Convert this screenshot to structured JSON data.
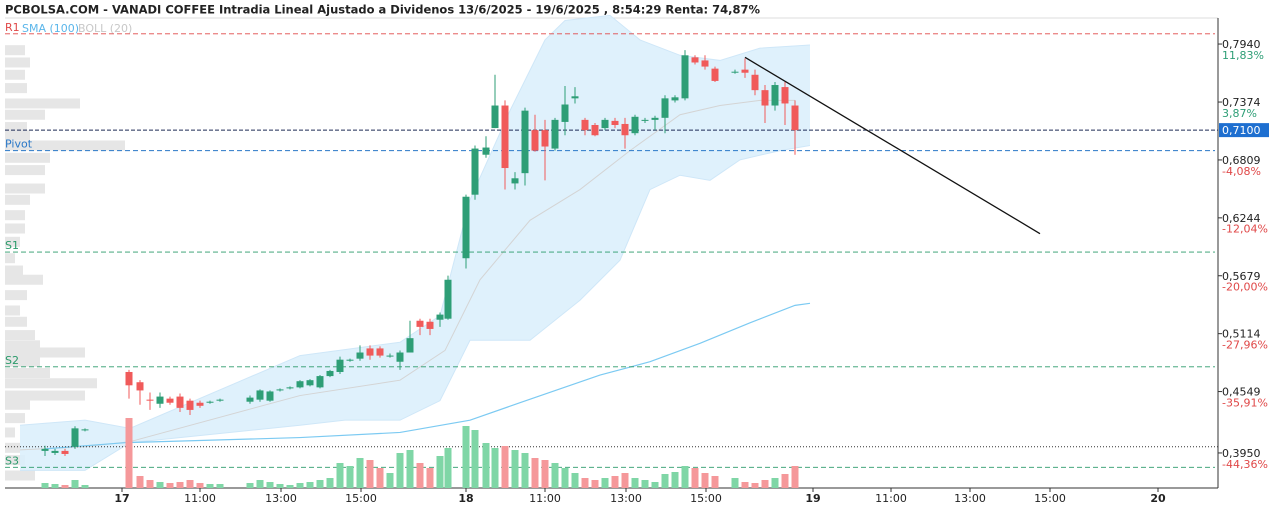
{
  "chart_data": {
    "type": "candlestick",
    "title": "PCBOLSA.COM - VANADI COFFEE Intradia Lineal Ajustado a Dividenos 13/6/2025 - 19/6/2025 , 8:54:29 Renta: 74,87%",
    "up_color": "#2e9e76",
    "down_color": "#f05a5a",
    "volume_up_color": "#7fd6a6",
    "volume_down_color": "#f5989a",
    "xlim": [
      0,
      121
    ],
    "xticks": [
      {
        "value": 11.7,
        "label": "17"
      },
      {
        "value": 19.5,
        "label": "11:00"
      },
      {
        "value": 27.6,
        "label": "13:00"
      },
      {
        "value": 35.6,
        "label": "15:00"
      },
      {
        "value": 46.1,
        "label": "18"
      },
      {
        "value": 54,
        "label": "11:00"
      },
      {
        "value": 62.1,
        "label": "13:00"
      },
      {
        "value": 70.1,
        "label": "15:00"
      },
      {
        "value": 80.8,
        "label": "19"
      },
      {
        "value": 88.6,
        "label": "11:00"
      },
      {
        "value": 96.5,
        "label": "13:00"
      },
      {
        "value": 104.5,
        "label": "15:00"
      },
      {
        "value": 115.3,
        "label": "20"
      }
    ],
    "ylim": [
      0.3608,
      0.8194
    ],
    "yticks": [
      {
        "value": 0.794,
        "label": "0,7940"
      },
      {
        "value": 0.7374,
        "label": "0,7374"
      },
      {
        "value": 0.6809,
        "label": "0,6809"
      },
      {
        "value": 0.6244,
        "label": "0,6244"
      },
      {
        "value": 0.5679,
        "label": "0,5679"
      },
      {
        "value": 0.5114,
        "label": "0,5114"
      },
      {
        "value": 0.4549,
        "label": "0,4549"
      },
      {
        "value": 0.395,
        "label": "0,3950"
      }
    ],
    "y2lim": [
      -49.18,
      15.41
    ],
    "y2ticks": [
      {
        "value": 11.83,
        "label": "11,83%"
      },
      {
        "value": 3.87,
        "label": "3,87%"
      },
      {
        "value": -4.08,
        "label": "-4,08%"
      },
      {
        "value": -12.04,
        "label": "-12,04%"
      },
      {
        "value": -20.0,
        "label": "-20,00%"
      },
      {
        "value": -27.96,
        "label": "-27,96%"
      },
      {
        "value": -35.91,
        "label": "-35,91%"
      },
      {
        "value": -44.36,
        "label": "-44,36%"
      }
    ],
    "current_price": {
      "value": 0.71,
      "label": "0,7100",
      "color": "#1e6fd0"
    },
    "reference_line": 0.401,
    "pivots": [
      {
        "name": "R1",
        "value": 0.804,
        "color": "#e04848"
      },
      {
        "name": "Pivot",
        "value": 0.69,
        "color": "#2a78c8"
      },
      {
        "name": "S1",
        "value": 0.591,
        "color": "#2a9a6a"
      },
      {
        "name": "S2",
        "value": 0.479,
        "color": "#2a9a6a"
      },
      {
        "name": "S3",
        "value": 0.381,
        "color": "#2a9a6a"
      }
    ],
    "sma": {
      "name": "SMA (100)",
      "color": "#7ccaf2",
      "x": [
        4,
        12,
        29.5,
        39.5,
        46.5,
        51.5,
        59.5,
        64.5,
        69.5,
        74.5,
        79,
        80.5
      ],
      "values": [
        0.399,
        0.405,
        0.41,
        0.415,
        0.427,
        0.444,
        0.471,
        0.484,
        0.502,
        0.522,
        0.539,
        0.541
      ]
    },
    "bollinger": {
      "name": "BOLL (20)",
      "color": "#d4d4d4",
      "fill": "#d9eefb",
      "upper": {
        "x": [
          1.5,
          8,
          12.5,
          29.5,
          39.5,
          43.5,
          46.5,
          50.5,
          54,
          56,
          60.5,
          63.5,
          67.5,
          71.5,
          75.5,
          80.5
        ],
        "values": [
          0.422,
          0.427,
          0.419,
          0.49,
          0.503,
          0.529,
          0.642,
          0.729,
          0.798,
          0.817,
          0.822,
          0.798,
          0.783,
          0.778,
          0.79,
          0.793
        ]
      },
      "middle": {
        "x": [
          1.5,
          8,
          12.5,
          29.5,
          39.5,
          44,
          47.5,
          52.5,
          57.5,
          62.5,
          67.5,
          71.5,
          75.5,
          79
        ],
        "values": [
          0.398,
          0.401,
          0.406,
          0.451,
          0.466,
          0.495,
          0.564,
          0.622,
          0.652,
          0.69,
          0.725,
          0.734,
          0.739,
          0.739
        ]
      },
      "lower": {
        "x": [
          1.5,
          8,
          12.5,
          29.5,
          34,
          39.5,
          43.5,
          46.5,
          52.5,
          57.5,
          61.5,
          64.5,
          67.5,
          70.5,
          73.5,
          77.5,
          80.5
        ],
        "values": [
          0.378,
          0.378,
          0.405,
          0.422,
          0.427,
          0.427,
          0.446,
          0.505,
          0.505,
          0.544,
          0.583,
          0.652,
          0.666,
          0.661,
          0.681,
          0.69,
          0.695
        ]
      }
    },
    "trendline": {
      "x": [
        74,
        103.5
      ],
      "values": [
        0.781,
        0.609
      ]
    },
    "volume_profile": {
      "color": "#e6e6e6",
      "levels": [
        0.788,
        0.776,
        0.764,
        0.751,
        0.736,
        0.725,
        0.713,
        0.705,
        0.695,
        0.683,
        0.671,
        0.653,
        0.642,
        0.627,
        0.614,
        0.601,
        0.585,
        0.573,
        0.564,
        0.549,
        0.534,
        0.523,
        0.51,
        0.5,
        0.493,
        0.484,
        0.473,
        0.463,
        0.451,
        0.442,
        0.429,
        0.415,
        0.4,
        0.388,
        0.373
      ],
      "values": [
        20,
        25,
        20,
        22,
        75,
        40,
        22,
        25,
        120,
        45,
        40,
        40,
        25,
        20,
        20,
        15,
        10,
        18,
        38,
        22,
        15,
        22,
        30,
        35,
        80,
        35,
        45,
        92,
        80,
        25,
        20,
        10,
        15,
        20,
        30
      ]
    },
    "candles": {
      "x": [
        4,
        5,
        6,
        7,
        8,
        12.4,
        13.5,
        14.5,
        15.5,
        16.5,
        17.5,
        18.5,
        19.5,
        20.5,
        21.5,
        24.5,
        25.5,
        26.5,
        27.5,
        28.5,
        29.5,
        30.5,
        31.5,
        32.5,
        33.5,
        34.5,
        35.5,
        36.5,
        37.5,
        38.5,
        39.5,
        40.5,
        41.5,
        42.5,
        43.5,
        44.3,
        46.1,
        47,
        48.1,
        49,
        50,
        51,
        52,
        53,
        54,
        55,
        56,
        57,
        58,
        59,
        60,
        61,
        62,
        63,
        64,
        65,
        66,
        67,
        68,
        69,
        70,
        71,
        73,
        74,
        75,
        76,
        77,
        78,
        79
      ],
      "open": [
        0.397,
        0.395,
        0.397,
        0.401,
        0.417,
        0.474,
        0.464,
        0.447,
        0.443,
        0.448,
        0.45,
        0.446,
        0.444,
        0.444,
        0.446,
        0.445,
        0.447,
        0.446,
        0.456,
        0.458,
        0.459,
        0.461,
        0.459,
        0.47,
        0.474,
        0.485,
        0.487,
        0.497,
        0.497,
        0.49,
        0.484,
        0.493,
        0.524,
        0.523,
        0.525,
        0.526,
        0.585,
        0.647,
        0.686,
        0.712,
        0.734,
        0.658,
        0.668,
        0.71,
        0.71,
        0.692,
        0.718,
        0.741,
        0.72,
        0.715,
        0.712,
        0.719,
        0.716,
        0.707,
        0.719,
        0.72,
        0.722,
        0.739,
        0.741,
        0.781,
        0.778,
        0.77,
        0.767,
        0.769,
        0.764,
        0.749,
        0.734,
        0.752,
        0.734
      ],
      "high": [
        0.402,
        0.399,
        0.399,
        0.421,
        0.419,
        0.476,
        0.466,
        0.454,
        0.454,
        0.45,
        0.453,
        0.448,
        0.446,
        0.446,
        0.448,
        0.451,
        0.457,
        0.456,
        0.458,
        0.46,
        0.466,
        0.467,
        0.471,
        0.476,
        0.489,
        0.487,
        0.5,
        0.5,
        0.499,
        0.492,
        0.495,
        0.524,
        0.526,
        0.526,
        0.532,
        0.568,
        0.647,
        0.695,
        0.704,
        0.764,
        0.739,
        0.669,
        0.732,
        0.725,
        0.72,
        0.722,
        0.753,
        0.752,
        0.722,
        0.717,
        0.722,
        0.722,
        0.722,
        0.725,
        0.722,
        0.724,
        0.744,
        0.744,
        0.788,
        0.783,
        0.783,
        0.772,
        0.769,
        0.78,
        0.769,
        0.754,
        0.757,
        0.757,
        0.739
      ],
      "low": [
        0.392,
        0.393,
        0.392,
        0.399,
        0.416,
        0.448,
        0.442,
        0.437,
        0.439,
        0.442,
        0.435,
        0.432,
        0.439,
        0.443,
        0.445,
        0.443,
        0.445,
        0.445,
        0.455,
        0.457,
        0.458,
        0.46,
        0.458,
        0.469,
        0.472,
        0.484,
        0.485,
        0.486,
        0.488,
        0.488,
        0.476,
        0.493,
        0.51,
        0.51,
        0.518,
        0.525,
        0.575,
        0.642,
        0.683,
        0.712,
        0.652,
        0.652,
        0.656,
        0.689,
        0.661,
        0.69,
        0.705,
        0.736,
        0.705,
        0.704,
        0.71,
        0.712,
        0.692,
        0.705,
        0.717,
        0.71,
        0.707,
        0.737,
        0.739,
        0.774,
        0.769,
        0.757,
        0.765,
        0.761,
        0.744,
        0.717,
        0.729,
        0.715,
        0.686
      ],
      "close": [
        0.399,
        0.397,
        0.394,
        0.419,
        0.418,
        0.461,
        0.456,
        0.446,
        0.45,
        0.444,
        0.439,
        0.437,
        0.441,
        0.445,
        0.447,
        0.449,
        0.456,
        0.455,
        0.457,
        0.459,
        0.465,
        0.466,
        0.47,
        0.475,
        0.486,
        0.486,
        0.493,
        0.49,
        0.49,
        0.49,
        0.493,
        0.507,
        0.518,
        0.516,
        0.53,
        0.564,
        0.645,
        0.692,
        0.693,
        0.734,
        0.673,
        0.663,
        0.729,
        0.69,
        0.694,
        0.72,
        0.735,
        0.743,
        0.71,
        0.705,
        0.72,
        0.715,
        0.705,
        0.723,
        0.72,
        0.722,
        0.741,
        0.742,
        0.783,
        0.776,
        0.772,
        0.758,
        0.767,
        0.766,
        0.749,
        0.734,
        0.754,
        0.736,
        0.71
      ],
      "volume": [
        5,
        4,
        3,
        8,
        3,
        70,
        12,
        8,
        6,
        5,
        6,
        8,
        5,
        4,
        4,
        5,
        8,
        6,
        4,
        3,
        5,
        6,
        8,
        10,
        25,
        22,
        30,
        28,
        20,
        15,
        35,
        38,
        25,
        20,
        32,
        40,
        62,
        58,
        45,
        40,
        42,
        38,
        35,
        30,
        28,
        25,
        20,
        15,
        10,
        8,
        10,
        12,
        15,
        10,
        8,
        6,
        14,
        16,
        22,
        20,
        15,
        12,
        10,
        6,
        5,
        8,
        10,
        14,
        22
      ]
    }
  }
}
